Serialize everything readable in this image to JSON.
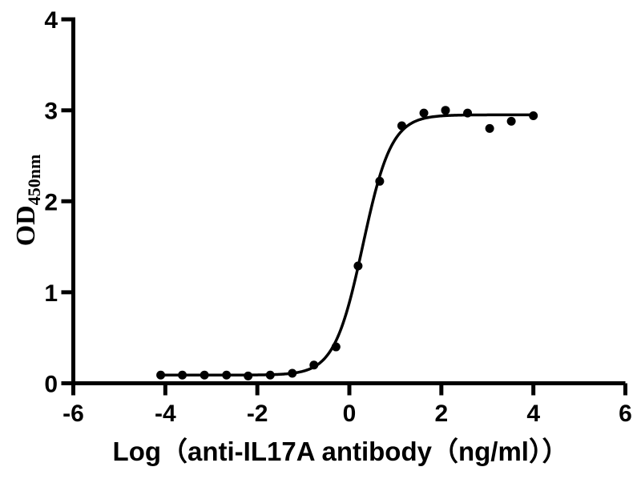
{
  "figure": {
    "background_color": "#ffffff",
    "foreground_color": "#000000"
  },
  "chart_data": {
    "type": "scatter",
    "title": "",
    "xlabel": "Log（anti-IL17A antibody（ng/ml））",
    "ylabel_main": "OD",
    "ylabel_sub": "450nm",
    "xlim": [
      -6,
      6
    ],
    "ylim": [
      0,
      4
    ],
    "x_ticks": [
      -6,
      -4,
      -2,
      0,
      2,
      4,
      6
    ],
    "y_ticks": [
      0,
      1,
      2,
      3,
      4
    ],
    "grid": false,
    "legend_position": "none",
    "marker_color": "#000000",
    "curve_color": "#000000",
    "axis_color": "#000000",
    "series": [
      {
        "name": "anti-IL17A antibody",
        "x": [
          -4.1,
          -3.63,
          -3.15,
          -2.67,
          -2.2,
          -1.72,
          -1.24,
          -0.77,
          -0.29,
          0.19,
          0.66,
          1.14,
          1.62,
          2.09,
          2.57,
          3.05,
          3.52,
          4.0
        ],
        "y": [
          0.09,
          0.09,
          0.09,
          0.09,
          0.08,
          0.09,
          0.11,
          0.2,
          0.4,
          1.29,
          2.22,
          2.83,
          2.97,
          3.0,
          2.97,
          2.8,
          2.88,
          2.94
        ]
      }
    ],
    "fit_curve": {
      "model": "four_parameter_logistic",
      "bottom": 0.09,
      "top": 2.95,
      "log_ec50": 0.295,
      "hill_slope": 1.4,
      "x_range": [
        -4.1,
        4.0
      ]
    }
  }
}
